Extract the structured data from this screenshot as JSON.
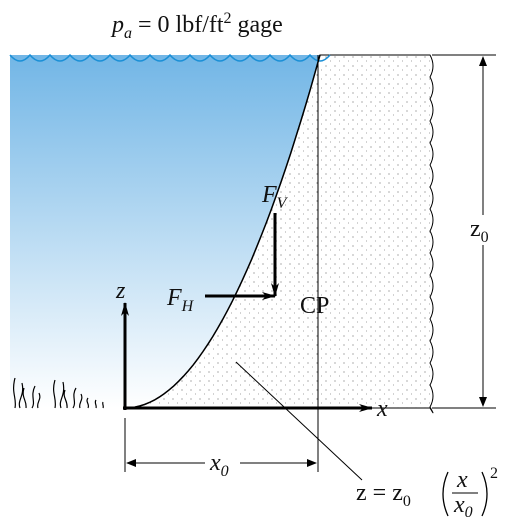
{
  "pressure_label": {
    "symbol": "p",
    "subscript": "a",
    "text": " = 0 lbf/ft",
    "superscript": "2",
    "suffix": " gage"
  },
  "force_vertical": {
    "symbol": "F",
    "subscript": "V"
  },
  "force_horizontal": {
    "symbol": "F",
    "subscript": "H"
  },
  "center_of_pressure": "CP",
  "axes": {
    "z": "z",
    "x": "x"
  },
  "height_label": {
    "symbol": "z",
    "subscript": "0"
  },
  "width_label": {
    "symbol": "x",
    "subscript": "0"
  },
  "curve_equation": {
    "lhs": "z = z",
    "lhs_subscript": "0",
    "numerator": "x",
    "denominator": "x",
    "denominator_subscript": "0",
    "exponent": "2"
  }
}
